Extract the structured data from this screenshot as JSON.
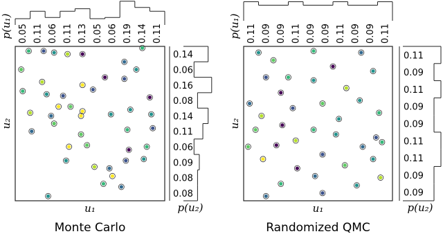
{
  "chart_data": [
    {
      "type": "scatter",
      "title": "Monte Carlo",
      "xlabel": "u₁",
      "ylabel": "u₂",
      "xlim": [
        0,
        1
      ],
      "ylim": [
        0,
        1
      ],
      "x": [
        0.09,
        0.19,
        0.26,
        0.35,
        0.45,
        0.85,
        0.73,
        0.04,
        0.81,
        0.18,
        0.6,
        0.73,
        0.05,
        0.45,
        0.21,
        0.32,
        0.29,
        0.37,
        0.45,
        0.44,
        0.77,
        0.52,
        0.1,
        0.9,
        0.91,
        0.24,
        0.26,
        0.64,
        0.75,
        0.92,
        0.11,
        0.44,
        0.36,
        0.48,
        0.76,
        0.88,
        0.86,
        0.74,
        0.53,
        0.63,
        0.65,
        0.59,
        0.34,
        0.71,
        0.22
      ],
      "y": [
        0.97,
        0.97,
        0.96,
        0.95,
        0.95,
        0.99,
        0.9,
        0.85,
        0.85,
        0.77,
        0.8,
        0.79,
        0.71,
        0.75,
        0.69,
        0.68,
        0.61,
        0.61,
        0.58,
        0.55,
        0.59,
        0.72,
        0.57,
        0.67,
        0.56,
        0.55,
        0.5,
        0.56,
        0.46,
        0.47,
        0.45,
        0.43,
        0.35,
        0.36,
        0.33,
        0.35,
        0.27,
        0.26,
        0.22,
        0.21,
        0.16,
        0.11,
        0.26,
        0.09,
        0.03
      ],
      "colors": [
        "#35b779",
        "#3b528b",
        "#21918c",
        "#b5de2b",
        "#440154",
        "#35b779",
        "#31688e",
        "#5ec962",
        "#21918c",
        "#b5de2b",
        "#440154",
        "#3b528b",
        "#35b779",
        "#fde725",
        "#21918c",
        "#3b528b",
        "#fde725",
        "#5ec962",
        "#fde725",
        "#fde725",
        "#21918c",
        "#3b528b",
        "#b5de2b",
        "#440154",
        "#21918c",
        "#31688e",
        "#5ec962",
        "#21918c",
        "#35b779",
        "#3b528b",
        "#31688e",
        "#5ec962",
        "#fde725",
        "#5ec962",
        "#440154",
        "#35b779",
        "#21918c",
        "#3b528b",
        "#b5de2b",
        "#31688e",
        "#fde725",
        "#35b779",
        "#21918c",
        "#31688e",
        "#21918c"
      ],
      "marginal_x": {
        "label": "p(u₁)",
        "values": [
          0.05,
          0.11,
          0.06,
          0.11,
          0.13,
          0.05,
          0.06,
          0.19,
          0.14,
          0.11
        ]
      },
      "marginal_y": {
        "label": "p(u₂)",
        "values": [
          0.14,
          0.06,
          0.16,
          0.08,
          0.14,
          0.11,
          0.06,
          0.09,
          0.08,
          0.08
        ]
      }
    },
    {
      "type": "scatter",
      "title": "Randomized QMC",
      "xlabel": "u₁",
      "ylabel": "u₂",
      "xlim": [
        0,
        1
      ],
      "ylim": [
        0,
        1
      ],
      "x": [
        0.1,
        0.47,
        0.79,
        0.2,
        0.6,
        0.87,
        0.15,
        0.3,
        0.47,
        0.69,
        0.25,
        0.78,
        0.04,
        0.53,
        0.33,
        0.91,
        0.12,
        0.64,
        0.26,
        0.08,
        0.47,
        0.89,
        0.62,
        0.35,
        0.22,
        0.8,
        0.03,
        0.93,
        0.53,
        0.13,
        0.87,
        0.68,
        0.36,
        0.48,
        0.25,
        0.92,
        0.76,
        0.53,
        0.15
      ],
      "y": [
        0.96,
        0.97,
        0.96,
        0.91,
        0.87,
        0.84,
        0.8,
        0.8,
        0.78,
        0.73,
        0.7,
        0.65,
        0.63,
        0.63,
        0.6,
        0.57,
        0.55,
        0.53,
        0.49,
        0.46,
        0.46,
        0.41,
        0.43,
        0.39,
        0.36,
        0.35,
        0.35,
        0.38,
        0.3,
        0.27,
        0.27,
        0.23,
        0.21,
        0.16,
        0.11,
        0.15,
        0.1,
        0.05,
        0.03
      ],
      "colors": [
        "#21918c",
        "#35b779",
        "#31688e",
        "#5ec962",
        "#440154",
        "#21918c",
        "#3b528b",
        "#35b779",
        "#21918c",
        "#b5de2b",
        "#440154",
        "#21918c",
        "#31688e",
        "#5ec962",
        "#3b528b",
        "#35b779",
        "#b5de2b",
        "#21918c",
        "#440154",
        "#5ec962",
        "#35b779",
        "#3b528b",
        "#21918c",
        "#b5de2b",
        "#440154",
        "#31688e",
        "#5ec962",
        "#35b779",
        "#3b528b",
        "#fde725",
        "#21918c",
        "#5ec962",
        "#440154",
        "#31688e",
        "#35b779",
        "#b5de2b",
        "#21918c",
        "#3b528b",
        "#31688e"
      ],
      "marginal_x": {
        "label": "p(u₁)",
        "values": [
          0.11,
          0.09,
          0.09,
          0.11,
          0.09,
          0.09,
          0.11,
          0.09,
          0.09,
          0.11
        ]
      },
      "marginal_y": {
        "label": "p(u₂)",
        "values": [
          0.11,
          0.09,
          0.11,
          0.09,
          0.09,
          0.11,
          0.11,
          0.09,
          0.09
        ]
      }
    }
  ]
}
